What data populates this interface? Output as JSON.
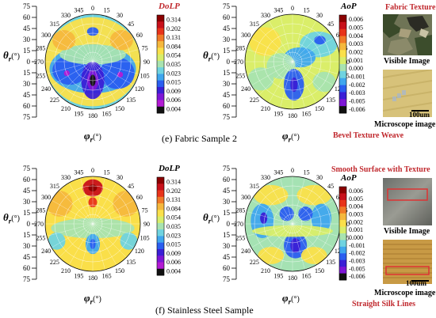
{
  "colorbar_dolp": {
    "title": "DoLP",
    "ticks": [
      "0.314",
      "0.202",
      "0.131",
      "0.084",
      "0.054",
      "0.035",
      "0.023",
      "0.015",
      "0.009",
      "0.006",
      "0.004"
    ],
    "colors": [
      "#8b0000",
      "#c8101a",
      "#e8331a",
      "#f07a28",
      "#f5b83d",
      "#fae04a",
      "#d8ee6a",
      "#a8e3b0",
      "#6fd3e0",
      "#3fa6ee",
      "#2a5ef0",
      "#3a1fd6",
      "#7d16d6",
      "#b31bd4",
      "#111111"
    ]
  },
  "colorbar_aop": {
    "title": "AoP",
    "ticks": [
      "0.006",
      "0.005",
      "0.004",
      "0.003",
      "0.002",
      "0.001",
      "0.000",
      "-0.001",
      "-0.002",
      "-0.003",
      "-0.005",
      "-0.006"
    ],
    "colors": [
      "#8b0000",
      "#c8101a",
      "#e8331a",
      "#f07a28",
      "#f5b83d",
      "#fae04a",
      "#d8ee6a",
      "#a8e3b0",
      "#6fd3e0",
      "#3fa6ee",
      "#2a5ef0",
      "#3a1fd6",
      "#7d16d6",
      "#111111"
    ]
  },
  "polar": {
    "theta_label": "θ",
    "theta_sub": "r",
    "theta_unit": "(°)",
    "phi_label": "φ",
    "phi_sub": "r",
    "phi_unit": "(°)",
    "angle_labels": [
      "0",
      "15",
      "30",
      "45",
      "60",
      "75",
      "90",
      "105",
      "120",
      "135",
      "150",
      "165",
      "180",
      "195",
      "210",
      "225",
      "240",
      "255",
      "270",
      "285",
      "300",
      "315",
      "330",
      "345"
    ],
    "theta_ticks": [
      "75",
      "60",
      "45",
      "30",
      "15",
      "0",
      "15",
      "30",
      "45",
      "60",
      "75"
    ]
  },
  "panel_e": {
    "caption": "(e) Fabric Sample 2",
    "annotation_top": "Fabric Texture",
    "visible_label": "Visible Image",
    "scale_label": "100um",
    "microscope_label": "Microscope image",
    "annotation_bottom": "Bevel Texture Weave"
  },
  "panel_f": {
    "caption": "(f) Stainless Steel Sample",
    "annotation_top": "Smooth Surface with Texture",
    "visible_label": "Visible Image",
    "scale_label": "100um",
    "microscope_label": "Microscope image",
    "annotation_bottom": "Straight Silk Lines"
  }
}
